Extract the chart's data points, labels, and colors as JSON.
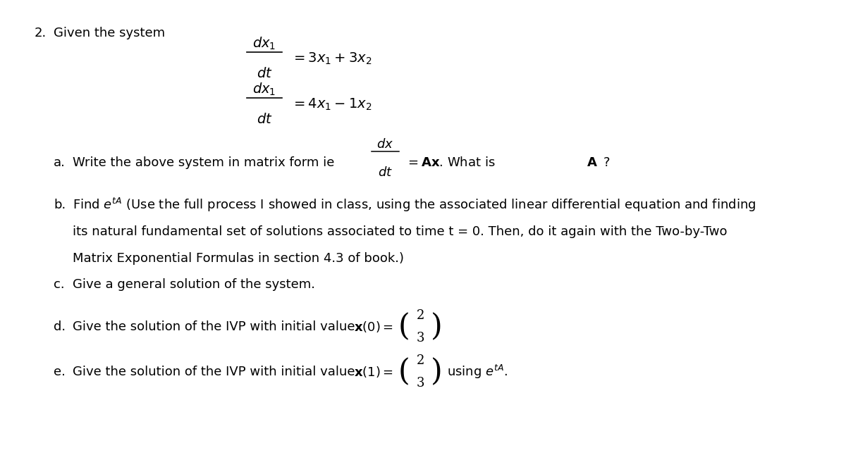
{
  "background_color": "#ffffff",
  "problem_number": "2.",
  "given_system_label": "Given the system",
  "eq1_num": "dx_{1}",
  "eq1_den": "dt",
  "eq1_rhs": "= 3x_{1} + 3x_{2}",
  "eq2_num": "dx_{1}",
  "eq2_den": "dt",
  "eq2_rhs": "= 4x_{1} - 1x_{2}",
  "part_a_label": "a.",
  "part_a_text1": "Write the above system in matrix form ie ",
  "part_a_frac_num": "dx",
  "part_a_frac_den": "dt",
  "part_a_text2": "= Ax. What is ",
  "part_a_bold": "A",
  "part_a_text3": " ?",
  "part_b_label": "b.",
  "part_b_text": "Find $e^{tA}$ (Use the full process I showed in class, using the associated linear differential equation and finding\n    its natural fundamental set of solutions associated to time t = 0. Then, do it again with the Two-by-Two\n    Matrix Exponential Formulas in section 4.3 of book.)",
  "part_c_label": "c.",
  "part_c_text": "Give a general solution of the system.",
  "part_d_label": "d.",
  "part_d_text": "Give the solution of the IVP with initial value ",
  "part_d_xval": "x(0) =",
  "part_d_vec": [
    "2",
    "3"
  ],
  "part_e_label": "e.",
  "part_e_text": "Give the solution of the IVP with initial value ",
  "part_e_xval": "x(1) =",
  "part_e_vec": [
    "2",
    "3"
  ],
  "part_e_using": "using $e^{tA}$.",
  "text_color": "#000000",
  "font_size_main": 13,
  "font_size_label": 13
}
